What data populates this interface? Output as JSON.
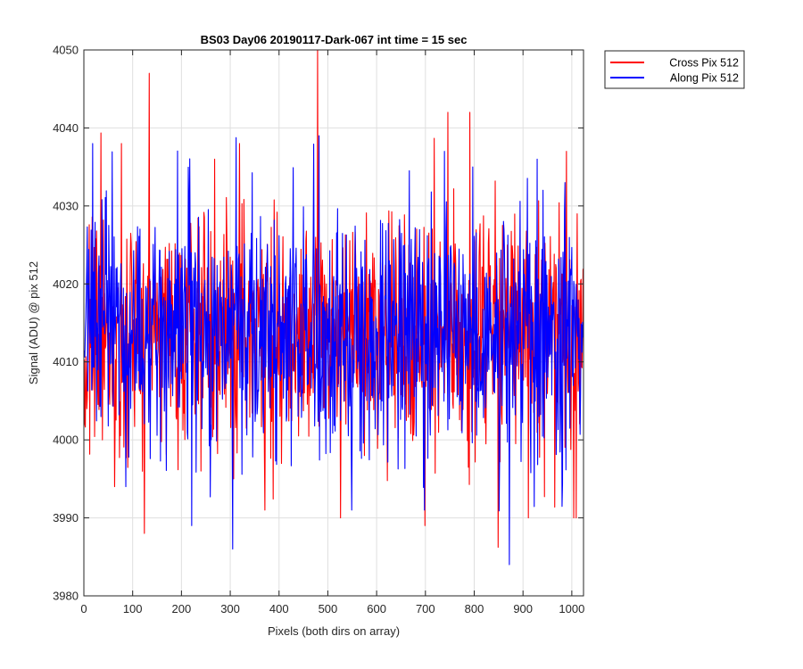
{
  "chart_data": {
    "type": "line",
    "title": "BS03 Day06 20190117-Dark-067 int time = 15 sec",
    "xlabel": "Pixels (both dirs on array)",
    "ylabel": "Signal (ADU) @ pix 512",
    "xlim": [
      0,
      1024
    ],
    "ylim": [
      3980,
      4050
    ],
    "xticks": [
      0,
      100,
      200,
      300,
      400,
      500,
      600,
      700,
      800,
      900,
      1000
    ],
    "yticks": [
      3980,
      3990,
      4000,
      4010,
      4020,
      4030,
      4040,
      4050
    ],
    "grid": true,
    "legend_position": "outside-top-right",
    "series_generation": {
      "n_points": 1024,
      "mean": 4014,
      "noise_sd": 7.5,
      "clip": [
        3980,
        4050
      ]
    },
    "series": [
      {
        "name": "Cross Pix 512",
        "color": "#ff0000",
        "seed": 512,
        "features": [
          {
            "x": 1,
            "y": 4002
          },
          {
            "x": 62,
            "y": 3994
          },
          {
            "x": 76,
            "y": 4038
          },
          {
            "x": 123,
            "y": 3988
          },
          {
            "x": 133,
            "y": 4047
          },
          {
            "x": 239,
            "y": 3996
          },
          {
            "x": 267,
            "y": 4036
          },
          {
            "x": 306,
            "y": 3995
          },
          {
            "x": 318,
            "y": 4038
          },
          {
            "x": 370,
            "y": 3991
          },
          {
            "x": 478,
            "y": 4050
          },
          {
            "x": 525,
            "y": 3990
          },
          {
            "x": 698,
            "y": 3989
          },
          {
            "x": 745,
            "y": 4042
          },
          {
            "x": 790,
            "y": 4042
          },
          {
            "x": 910,
            "y": 3990
          },
          {
            "x": 988,
            "y": 4037
          },
          {
            "x": 1003,
            "y": 3990
          },
          {
            "x": 1008,
            "y": 3990
          }
        ]
      },
      {
        "name": "Along Pix 512",
        "color": "#0000ff",
        "seed": 1024,
        "features": [
          {
            "x": 17,
            "y": 4038
          },
          {
            "x": 85,
            "y": 3994
          },
          {
            "x": 220,
            "y": 3989
          },
          {
            "x": 304,
            "y": 3986
          },
          {
            "x": 481,
            "y": 4039
          },
          {
            "x": 548,
            "y": 3991
          },
          {
            "x": 697,
            "y": 3991
          },
          {
            "x": 738,
            "y": 4037
          },
          {
            "x": 796,
            "y": 4035
          },
          {
            "x": 871,
            "y": 3984
          },
          {
            "x": 928,
            "y": 4036
          },
          {
            "x": 985,
            "y": 4033
          }
        ]
      }
    ]
  }
}
